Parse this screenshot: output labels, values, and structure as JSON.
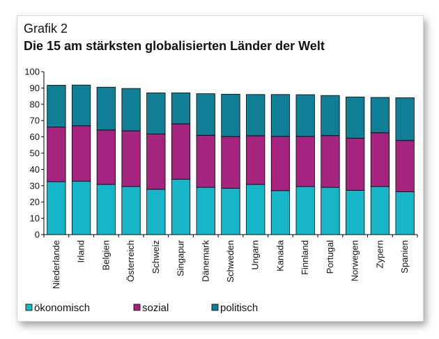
{
  "figure": {
    "label": "Grafik 2",
    "title": "Die 15 am stärksten globalisierten Länder der Welt"
  },
  "chart_data": {
    "type": "bar",
    "stacked": true,
    "categories": [
      "Niederlande",
      "Irland",
      "Belgien",
      "Österreich",
      "Schweiz",
      "Singapur",
      "Dänemark",
      "Schweden",
      "Ungarn",
      "Kanada",
      "Finnland",
      "Portugal",
      "Norwegen",
      "Zypern",
      "Spanien"
    ],
    "series": [
      {
        "name": "ökonomisch",
        "color": "#17b5c8",
        "values": [
          32.5,
          32.8,
          30.8,
          29.5,
          27.8,
          34.0,
          29.0,
          28.5,
          30.8,
          27.0,
          29.5,
          29.0,
          27.2,
          29.5,
          26.3
        ]
      },
      {
        "name": "sozial",
        "color": "#a6247d",
        "values": [
          33.5,
          34.0,
          33.4,
          34.2,
          34.0,
          34.0,
          32.0,
          31.7,
          29.9,
          33.3,
          30.8,
          31.8,
          32.0,
          33.0,
          31.5
        ]
      },
      {
        "name": "politisch",
        "color": "#0f7f96",
        "values": [
          25.7,
          25.0,
          26.3,
          26.0,
          25.2,
          19.0,
          25.5,
          26.0,
          25.3,
          25.7,
          25.6,
          24.6,
          25.3,
          21.7,
          26.2
        ]
      }
    ],
    "yticks": [
      0,
      10,
      20,
      30,
      40,
      50,
      60,
      70,
      80,
      90,
      100
    ],
    "ylim": [
      0,
      100
    ],
    "grid": false,
    "legend_position": "bottom"
  }
}
